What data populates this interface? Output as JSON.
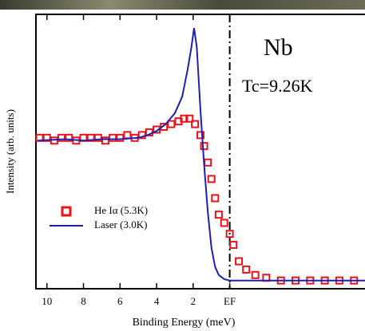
{
  "chart_data": {
    "type": "spectrum",
    "xlabel": "Binding Energy (meV)",
    "ylabel": "Intensity (arb. units)",
    "annotations": [
      "Nb",
      "Tc=9.26K"
    ],
    "xlim": [
      10.6,
      -7.4
    ],
    "ylim": [
      0,
      1
    ],
    "xticks": [
      10,
      8,
      6,
      4,
      2,
      {
        "value": 0,
        "label": "EF"
      }
    ],
    "reversed_x": true,
    "legend": "center left",
    "series": [
      {
        "name": "He Iα (5.3K)",
        "color": "#e8141c",
        "style": "markers",
        "x": [
          10.4,
          10,
          9.6,
          9.2,
          8.8,
          8.4,
          8,
          7.6,
          7.2,
          6.8,
          6.4,
          6,
          5.6,
          5.2,
          4.8,
          4.4,
          4,
          3.6,
          3.2,
          2.8,
          2.5,
          2.2,
          1.9,
          1.6,
          1.4,
          1.2,
          1.0,
          0.8,
          0.6,
          0.3,
          0,
          -0.2,
          -0.5,
          -0.9,
          -1.4,
          -2,
          -2.8,
          -3.6,
          -4.4,
          -5.2,
          -6,
          -6.8
        ],
        "values": [
          0.55,
          0.55,
          0.54,
          0.55,
          0.55,
          0.54,
          0.55,
          0.55,
          0.55,
          0.54,
          0.55,
          0.55,
          0.56,
          0.55,
          0.56,
          0.57,
          0.58,
          0.59,
          0.6,
          0.61,
          0.62,
          0.62,
          0.6,
          0.56,
          0.52,
          0.46,
          0.4,
          0.33,
          0.27,
          0.24,
          0.2,
          0.16,
          0.1,
          0.07,
          0.05,
          0.04,
          0.03,
          0.03,
          0.03,
          0.03,
          0.03,
          0.03
        ]
      },
      {
        "name": "Laser (3.0K)",
        "color": "#1f1fb0",
        "style": "line",
        "x": [
          10.5,
          9,
          8,
          7,
          6,
          5,
          4.5,
          4,
          3.5,
          3,
          2.6,
          2.3,
          2.1,
          1.95,
          1.8,
          1.6,
          1.4,
          1.2,
          1.0,
          0.8,
          0.6,
          0.3,
          0,
          -2,
          -4,
          -7.4
        ],
        "values": [
          0.54,
          0.545,
          0.54,
          0.545,
          0.545,
          0.55,
          0.56,
          0.575,
          0.6,
          0.64,
          0.7,
          0.8,
          0.88,
          0.95,
          0.88,
          0.65,
          0.45,
          0.28,
          0.15,
          0.08,
          0.05,
          0.035,
          0.03,
          0.03,
          0.03,
          0.03
        ]
      }
    ]
  }
}
